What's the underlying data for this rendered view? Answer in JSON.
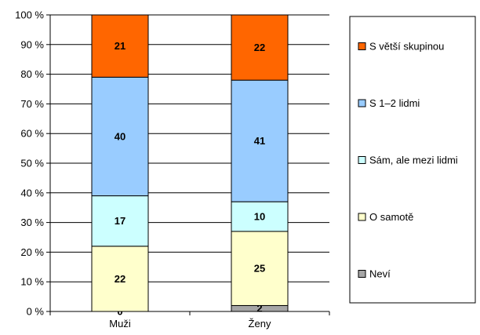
{
  "chart_data": {
    "type": "bar",
    "stacked": true,
    "percent_stacked": true,
    "categories": [
      "Muži",
      "Ženy"
    ],
    "series": [
      {
        "name": "Neví",
        "values": [
          0,
          2
        ],
        "color": "#a6a6a6"
      },
      {
        "name": "O samotě",
        "values": [
          22,
          25
        ],
        "color": "#ffffcc"
      },
      {
        "name": "Sám, ale mezi lidmi",
        "values": [
          17,
          10
        ],
        "color": "#ccffff"
      },
      {
        "name": "S 1–2 lidmi",
        "values": [
          40,
          41
        ],
        "color": "#99ccff"
      },
      {
        "name": "S větší skupinou",
        "values": [
          21,
          22
        ],
        "color": "#ff6600"
      }
    ],
    "yticks": [
      "0 %",
      "10 %",
      "20 %",
      "30 %",
      "40 %",
      "50 %",
      "60 %",
      "70 %",
      "80 %",
      "90 %",
      "100 %"
    ],
    "ylim": [
      0,
      100
    ],
    "grid": true,
    "legend_position": "right",
    "title": "",
    "xlabel": "",
    "ylabel": ""
  }
}
